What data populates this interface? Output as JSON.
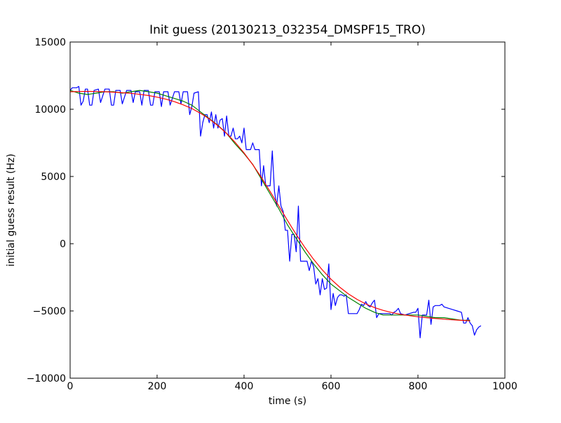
{
  "chart_data": {
    "type": "line",
    "title": "Init guess (20130213_032354_DMSPF15_TRO)",
    "xlabel": "time (s)",
    "ylabel": "initial guess result (Hz)",
    "xlim": [
      0,
      1000
    ],
    "ylim": [
      -10000,
      15000
    ],
    "x_ticks": [
      0,
      200,
      400,
      600,
      800,
      1000
    ],
    "y_ticks": [
      -10000,
      -5000,
      0,
      5000,
      10000,
      15000
    ],
    "grid": false,
    "legend": "none",
    "series": [
      {
        "color": "#0000ff",
        "points": [
          [
            0,
            11400
          ],
          [
            5,
            11600
          ],
          [
            15,
            11600
          ],
          [
            20,
            11700
          ],
          [
            25,
            10300
          ],
          [
            30,
            10600
          ],
          [
            35,
            11500
          ],
          [
            40,
            11500
          ],
          [
            45,
            10300
          ],
          [
            50,
            10300
          ],
          [
            55,
            11400
          ],
          [
            65,
            11500
          ],
          [
            70,
            10500
          ],
          [
            75,
            11000
          ],
          [
            80,
            11500
          ],
          [
            90,
            11500
          ],
          [
            95,
            10300
          ],
          [
            100,
            10300
          ],
          [
            105,
            11400
          ],
          [
            115,
            11400
          ],
          [
            120,
            10400
          ],
          [
            125,
            10900
          ],
          [
            130,
            11400
          ],
          [
            140,
            11400
          ],
          [
            145,
            10500
          ],
          [
            150,
            11300
          ],
          [
            160,
            11300
          ],
          [
            165,
            10300
          ],
          [
            170,
            11400
          ],
          [
            180,
            11400
          ],
          [
            185,
            10300
          ],
          [
            190,
            10300
          ],
          [
            195,
            11300
          ],
          [
            205,
            11300
          ],
          [
            210,
            10200
          ],
          [
            215,
            11300
          ],
          [
            225,
            11300
          ],
          [
            230,
            10300
          ],
          [
            235,
            10800
          ],
          [
            240,
            11300
          ],
          [
            250,
            11300
          ],
          [
            255,
            10400
          ],
          [
            260,
            11300
          ],
          [
            270,
            11300
          ],
          [
            275,
            9600
          ],
          [
            280,
            10200
          ],
          [
            285,
            11200
          ],
          [
            295,
            11300
          ],
          [
            300,
            8000
          ],
          [
            305,
            9000
          ],
          [
            310,
            9600
          ],
          [
            315,
            9600
          ],
          [
            320,
            9000
          ],
          [
            325,
            9800
          ],
          [
            330,
            8600
          ],
          [
            335,
            9600
          ],
          [
            340,
            8600
          ],
          [
            345,
            9200
          ],
          [
            350,
            9300
          ],
          [
            355,
            8000
          ],
          [
            360,
            9500
          ],
          [
            365,
            8000
          ],
          [
            370,
            8000
          ],
          [
            375,
            8600
          ],
          [
            380,
            7800
          ],
          [
            385,
            7800
          ],
          [
            390,
            8000
          ],
          [
            395,
            7500
          ],
          [
            400,
            8600
          ],
          [
            405,
            7000
          ],
          [
            410,
            7000
          ],
          [
            415,
            7000
          ],
          [
            420,
            7500
          ],
          [
            425,
            7000
          ],
          [
            430,
            7000
          ],
          [
            435,
            7000
          ],
          [
            440,
            4300
          ],
          [
            445,
            5800
          ],
          [
            450,
            4300
          ],
          [
            455,
            4300
          ],
          [
            460,
            4300
          ],
          [
            465,
            6900
          ],
          [
            470,
            3900
          ],
          [
            475,
            2800
          ],
          [
            480,
            4300
          ],
          [
            485,
            2800
          ],
          [
            490,
            2400
          ],
          [
            495,
            1000
          ],
          [
            500,
            1000
          ],
          [
            505,
            -1300
          ],
          [
            510,
            700
          ],
          [
            515,
            700
          ],
          [
            520,
            -600
          ],
          [
            525,
            2800
          ],
          [
            530,
            -1300
          ],
          [
            535,
            -1300
          ],
          [
            540,
            -1300
          ],
          [
            545,
            -1300
          ],
          [
            550,
            -2000
          ],
          [
            555,
            -1300
          ],
          [
            560,
            -1700
          ],
          [
            565,
            -3000
          ],
          [
            570,
            -2600
          ],
          [
            575,
            -3800
          ],
          [
            580,
            -2600
          ],
          [
            585,
            -3400
          ],
          [
            590,
            -3300
          ],
          [
            595,
            -1500
          ],
          [
            600,
            -4900
          ],
          [
            605,
            -3700
          ],
          [
            610,
            -4600
          ],
          [
            615,
            -4000
          ],
          [
            620,
            -3800
          ],
          [
            625,
            -3800
          ],
          [
            630,
            -3900
          ],
          [
            635,
            -3800
          ],
          [
            640,
            -5200
          ],
          [
            645,
            -5200
          ],
          [
            650,
            -5200
          ],
          [
            655,
            -5200
          ],
          [
            660,
            -5200
          ],
          [
            665,
            -4900
          ],
          [
            670,
            -4500
          ],
          [
            675,
            -4600
          ],
          [
            680,
            -4300
          ],
          [
            685,
            -4600
          ],
          [
            690,
            -4700
          ],
          [
            695,
            -4400
          ],
          [
            700,
            -4200
          ],
          [
            705,
            -5500
          ],
          [
            710,
            -5200
          ],
          [
            720,
            -5200
          ],
          [
            725,
            -5200
          ],
          [
            730,
            -5200
          ],
          [
            735,
            -5200
          ],
          [
            740,
            -5300
          ],
          [
            745,
            -5100
          ],
          [
            750,
            -5000
          ],
          [
            755,
            -4800
          ],
          [
            760,
            -5200
          ],
          [
            770,
            -5300
          ],
          [
            780,
            -5200
          ],
          [
            790,
            -5100
          ],
          [
            795,
            -5100
          ],
          [
            800,
            -4800
          ],
          [
            805,
            -7000
          ],
          [
            810,
            -5300
          ],
          [
            815,
            -5300
          ],
          [
            820,
            -5300
          ],
          [
            825,
            -4200
          ],
          [
            830,
            -6000
          ],
          [
            835,
            -4700
          ],
          [
            840,
            -4600
          ],
          [
            850,
            -4600
          ],
          [
            855,
            -4500
          ],
          [
            860,
            -4700
          ],
          [
            870,
            -4800
          ],
          [
            880,
            -4900
          ],
          [
            890,
            -5000
          ],
          [
            900,
            -5100
          ],
          [
            905,
            -5900
          ],
          [
            910,
            -5900
          ],
          [
            915,
            -5500
          ],
          [
            920,
            -5900
          ],
          [
            925,
            -6100
          ],
          [
            930,
            -6800
          ],
          [
            935,
            -6400
          ],
          [
            940,
            -6200
          ],
          [
            945,
            -6100
          ]
        ]
      },
      {
        "color": "#008000",
        "points": [
          [
            0,
            11400
          ],
          [
            20,
            11200
          ],
          [
            40,
            11100
          ],
          [
            60,
            11200
          ],
          [
            80,
            11300
          ],
          [
            100,
            11300
          ],
          [
            120,
            11200
          ],
          [
            140,
            11300
          ],
          [
            160,
            11400
          ],
          [
            180,
            11300
          ],
          [
            200,
            11200
          ],
          [
            220,
            11000
          ],
          [
            240,
            10800
          ],
          [
            260,
            10600
          ],
          [
            280,
            10300
          ],
          [
            300,
            9800
          ],
          [
            320,
            9300
          ],
          [
            340,
            8800
          ],
          [
            360,
            8200
          ],
          [
            380,
            7400
          ],
          [
            400,
            6700
          ],
          [
            420,
            5900
          ],
          [
            440,
            4800
          ],
          [
            460,
            3700
          ],
          [
            480,
            2600
          ],
          [
            500,
            1400
          ],
          [
            520,
            400
          ],
          [
            540,
            -600
          ],
          [
            560,
            -1500
          ],
          [
            580,
            -2300
          ],
          [
            600,
            -3000
          ],
          [
            620,
            -3500
          ],
          [
            640,
            -4000
          ],
          [
            660,
            -4400
          ],
          [
            680,
            -4800
          ],
          [
            700,
            -5100
          ],
          [
            720,
            -5300
          ],
          [
            740,
            -5300
          ],
          [
            760,
            -5300
          ],
          [
            780,
            -5300
          ],
          [
            800,
            -5300
          ],
          [
            820,
            -5400
          ],
          [
            840,
            -5500
          ],
          [
            860,
            -5500
          ],
          [
            880,
            -5600
          ],
          [
            900,
            -5700
          ],
          [
            920,
            -5700
          ]
        ]
      },
      {
        "color": "#ff0000",
        "points": [
          [
            0,
            11300
          ],
          [
            20,
            11320
          ],
          [
            40,
            11330
          ],
          [
            60,
            11320
          ],
          [
            80,
            11300
          ],
          [
            100,
            11270
          ],
          [
            120,
            11230
          ],
          [
            140,
            11180
          ],
          [
            160,
            11110
          ],
          [
            180,
            11020
          ],
          [
            200,
            10900
          ],
          [
            220,
            10750
          ],
          [
            240,
            10560
          ],
          [
            260,
            10330
          ],
          [
            280,
            10050
          ],
          [
            300,
            9700
          ],
          [
            320,
            9280
          ],
          [
            340,
            8780
          ],
          [
            360,
            8200
          ],
          [
            380,
            7520
          ],
          [
            400,
            6750
          ],
          [
            420,
            5880
          ],
          [
            440,
            4920
          ],
          [
            460,
            3880
          ],
          [
            480,
            2800
          ],
          [
            500,
            1730
          ],
          [
            520,
            690
          ],
          [
            540,
            -280
          ],
          [
            560,
            -1160
          ],
          [
            580,
            -1950
          ],
          [
            600,
            -2640
          ],
          [
            620,
            -3230
          ],
          [
            640,
            -3730
          ],
          [
            660,
            -4140
          ],
          [
            680,
            -4480
          ],
          [
            700,
            -4750
          ],
          [
            720,
            -4960
          ],
          [
            740,
            -5120
          ],
          [
            760,
            -5250
          ],
          [
            780,
            -5350
          ],
          [
            800,
            -5430
          ],
          [
            820,
            -5500
          ],
          [
            840,
            -5560
          ],
          [
            860,
            -5610
          ],
          [
            880,
            -5660
          ],
          [
            900,
            -5700
          ],
          [
            920,
            -5740
          ]
        ]
      }
    ]
  }
}
